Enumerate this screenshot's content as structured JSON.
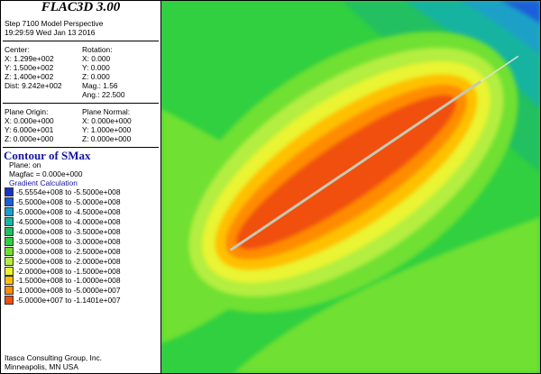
{
  "app_title": "FLAC3D 3.00",
  "step_line": "Step 7100  Model Perspective",
  "timestamp": "19:29:59 Wed Jan 13 2016",
  "view": {
    "center_label": "Center:",
    "center_x": "X: 1.299e+002",
    "center_y": "Y: 1.500e+002",
    "center_z": "Z: 1.400e+002",
    "dist": "Dist: 9.242e+002",
    "rotation_label": "Rotation:",
    "rot_x": "X:   0.000",
    "rot_y": "Y:   0.000",
    "rot_z": "Z:   0.000",
    "mag": "Mag.:     1.56",
    "ang": "Ang.:  22.500"
  },
  "plane": {
    "origin_label": "Plane Origin:",
    "origin_x": "X: 0.000e+000",
    "origin_y": "Y: 6.000e+001",
    "origin_z": "Z: 0.000e+000",
    "normal_label": "Plane Normal:",
    "normal_x": "X: 0.000e+000",
    "normal_y": "Y: 1.000e+000",
    "normal_z": "Z: 0.000e+000"
  },
  "contour": {
    "title": "Contour of SMax",
    "plane_on": "Plane: on",
    "magfac": "Magfac =  0.000e+000",
    "gradient": "Gradient Calculation",
    "legend": [
      {
        "label": "-5.5554e+008 to -5.5000e+008",
        "color": "#1a32c8"
      },
      {
        "label": "-5.5000e+008 to -5.0000e+008",
        "color": "#1a5fd8"
      },
      {
        "label": "-5.0000e+008 to -4.5000e+008",
        "color": "#1aa0c8"
      },
      {
        "label": "-4.5000e+008 to -4.0000e+008",
        "color": "#18b4a0"
      },
      {
        "label": "-4.0000e+008 to -3.5000e+008",
        "color": "#20c060"
      },
      {
        "label": "-3.5000e+008 to -3.0000e+008",
        "color": "#30d040"
      },
      {
        "label": "-3.0000e+008 to -2.5000e+008",
        "color": "#70e030"
      },
      {
        "label": "-2.5000e+008 to -2.0000e+008",
        "color": "#b4ee40"
      },
      {
        "label": "-2.0000e+008 to -1.5000e+008",
        "color": "#eaf430"
      },
      {
        "label": "-1.5000e+008 to -1.0000e+008",
        "color": "#ffc000"
      },
      {
        "label": "-1.0000e+008 to -5.0000e+007",
        "color": "#ff8c00"
      },
      {
        "label": "-5.0000e+007 to -1.1401e+007",
        "color": "#f05010"
      }
    ]
  },
  "footer": {
    "company": "Itasca Consulting Group, Inc.",
    "location": "Minneapolis, MN  USA"
  }
}
